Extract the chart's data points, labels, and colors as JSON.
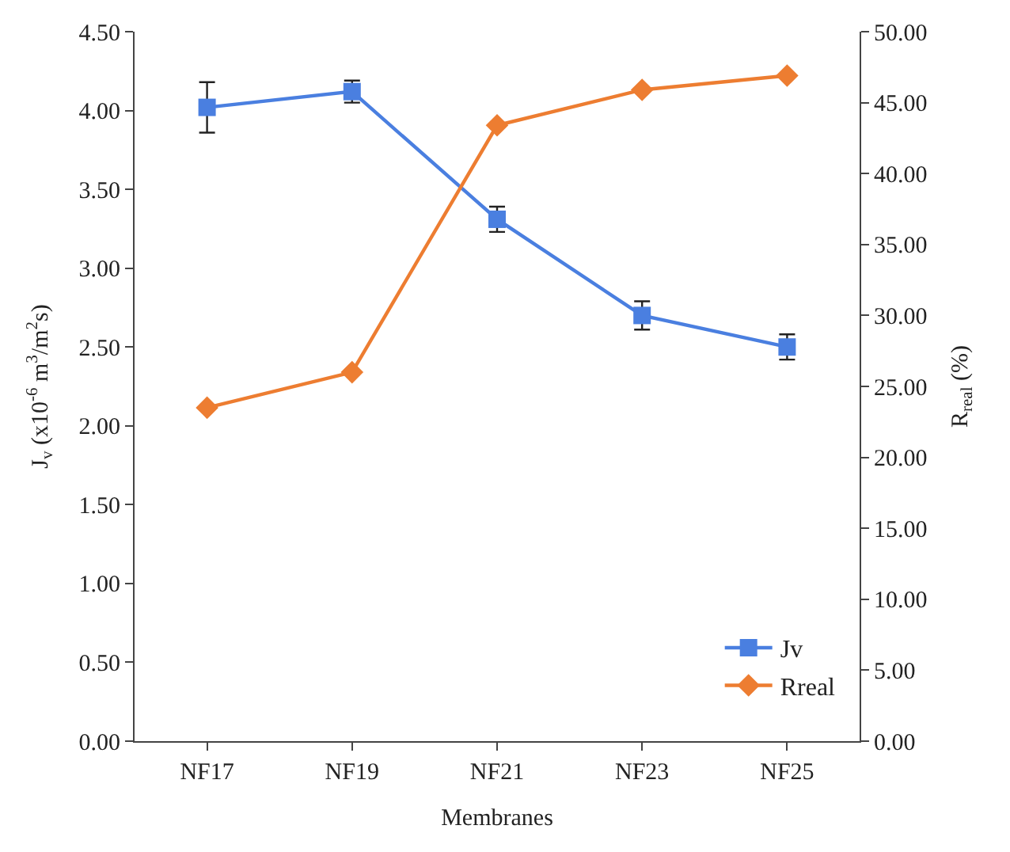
{
  "chart_data": {
    "type": "line",
    "xlabel": "Membranes",
    "ylabel": "J$_{v}$ (x10$^{-6}$ m$^{3}$/m$^{2}$s)",
    "y2label": "R$_{real}$ (%)",
    "categories": [
      "NF17",
      "NF19",
      "NF21",
      "NF23",
      "NF25"
    ],
    "series": [
      {
        "name": "Jv",
        "color": "#4a7fe0",
        "marker": "square",
        "values": [
          4.02,
          4.12,
          3.31,
          2.7,
          2.5
        ],
        "errors": [
          0.16,
          0.07,
          0.08,
          0.09,
          0.08
        ]
      },
      {
        "name": "Rreal",
        "color": "#ed7d31",
        "marker": "diamond",
        "axis": "y2",
        "values": [
          23.5,
          26.0,
          43.4,
          45.9,
          46.9
        ]
      }
    ],
    "ylim": [
      0,
      4.5
    ],
    "yticks": [
      {
        "value": 0,
        "label": "0.00"
      },
      {
        "value": 0.5,
        "label": "0.50"
      },
      {
        "value": 1,
        "label": "1.00"
      },
      {
        "value": 1.5,
        "label": "1.50"
      },
      {
        "value": 2,
        "label": "2.00"
      },
      {
        "value": 2.5,
        "label": "2.50"
      },
      {
        "value": 3,
        "label": "3.00"
      },
      {
        "value": 3.5,
        "label": "3.50"
      },
      {
        "value": 4,
        "label": "4.00"
      },
      {
        "value": 4.5,
        "label": "4.50"
      }
    ],
    "y2lim": [
      0,
      50
    ],
    "y2ticks": [
      {
        "value": 0,
        "label": "0.00"
      },
      {
        "value": 5,
        "label": "5.00"
      },
      {
        "value": 10,
        "label": "10.00"
      },
      {
        "value": 15,
        "label": "15.00"
      },
      {
        "value": 20,
        "label": "20.00"
      },
      {
        "value": 25,
        "label": "25.00"
      },
      {
        "value": 30,
        "label": "30.00"
      },
      {
        "value": 35,
        "label": "35.00"
      },
      {
        "value": 40,
        "label": "40.00"
      },
      {
        "value": 45,
        "label": "45.00"
      },
      {
        "value": 50,
        "label": "50.00"
      }
    ],
    "legend": "bottom right"
  }
}
